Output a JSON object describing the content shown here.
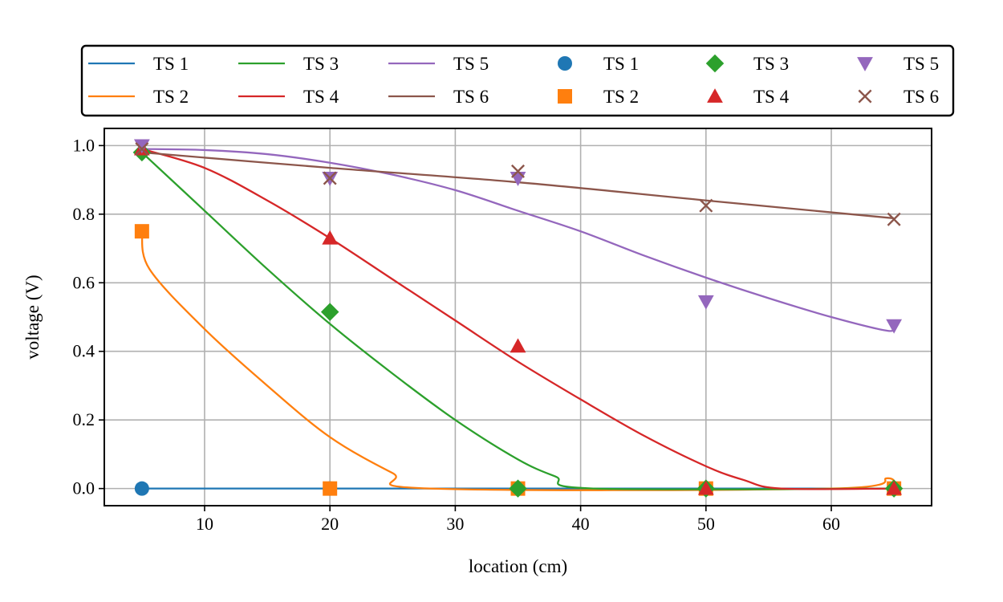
{
  "chart_data": {
    "type": "line",
    "xlabel": "location (cm)",
    "ylabel": "voltage (V)",
    "xlim": [
      2,
      68
    ],
    "ylim": [
      -0.05,
      1.05
    ],
    "xticks": [
      10,
      20,
      30,
      40,
      50,
      60
    ],
    "yticks": [
      0.0,
      0.2,
      0.4,
      0.6,
      0.8,
      1.0
    ],
    "grid": true,
    "legend_placement": "top, above plot, 6 columns",
    "series": [
      {
        "name": "TS 1",
        "color": "#1f77b4",
        "marker": "circle",
        "line": [
          [
            5,
            0.0
          ],
          [
            65,
            0.0
          ]
        ],
        "points": [
          [
            5,
            0.0
          ],
          [
            20,
            0.0
          ],
          [
            35,
            0.0
          ],
          [
            50,
            0.0
          ],
          [
            65,
            0.0
          ]
        ]
      },
      {
        "name": "TS 2",
        "color": "#ff7f0e",
        "marker": "square",
        "line": [
          [
            5,
            0.75
          ],
          [
            5.6,
            0.64
          ],
          [
            10,
            0.465
          ],
          [
            15,
            0.3
          ],
          [
            20,
            0.15
          ],
          [
            25,
            0.045
          ],
          [
            28,
            0.0
          ],
          [
            60,
            0.0
          ],
          [
            64.5,
            0.03
          ],
          [
            65,
            0.0
          ]
        ],
        "points": [
          [
            5,
            0.75
          ],
          [
            20,
            0.0
          ],
          [
            35,
            0.0
          ],
          [
            50,
            0.0
          ],
          [
            65,
            0.0
          ]
        ]
      },
      {
        "name": "TS 3",
        "color": "#2ca02c",
        "marker": "diamond",
        "line": [
          [
            5,
            0.98
          ],
          [
            10,
            0.81
          ],
          [
            15,
            0.64
          ],
          [
            20,
            0.48
          ],
          [
            25,
            0.335
          ],
          [
            30,
            0.2
          ],
          [
            35,
            0.085
          ],
          [
            38,
            0.035
          ],
          [
            41,
            0.0
          ],
          [
            65,
            0.0
          ]
        ],
        "points": [
          [
            5,
            0.98
          ],
          [
            20,
            0.515
          ],
          [
            35,
            0.0
          ],
          [
            50,
            0.0
          ],
          [
            65,
            0.0
          ]
        ]
      },
      {
        "name": "TS 4",
        "color": "#d62728",
        "marker": "triangle-up",
        "line": [
          [
            5,
            0.99
          ],
          [
            10,
            0.935
          ],
          [
            15,
            0.84
          ],
          [
            20,
            0.73
          ],
          [
            25,
            0.61
          ],
          [
            30,
            0.49
          ],
          [
            35,
            0.37
          ],
          [
            40,
            0.26
          ],
          [
            45,
            0.155
          ],
          [
            50,
            0.065
          ],
          [
            53,
            0.025
          ],
          [
            56,
            0.0
          ],
          [
            65,
            0.0
          ]
        ],
        "points": [
          [
            5,
            0.99
          ],
          [
            20,
            0.73
          ],
          [
            35,
            0.415
          ],
          [
            50,
            0.0
          ],
          [
            65,
            0.0
          ]
        ]
      },
      {
        "name": "TS 5",
        "color": "#9467bd",
        "marker": "triangle-down",
        "line": [
          [
            5,
            0.99
          ],
          [
            10,
            0.987
          ],
          [
            15,
            0.975
          ],
          [
            20,
            0.95
          ],
          [
            25,
            0.915
          ],
          [
            30,
            0.87
          ],
          [
            35,
            0.81
          ],
          [
            40,
            0.75
          ],
          [
            45,
            0.68
          ],
          [
            50,
            0.615
          ],
          [
            55,
            0.555
          ],
          [
            60,
            0.5
          ],
          [
            64.5,
            0.46
          ],
          [
            65,
            0.475
          ]
        ],
        "points": [
          [
            5,
            1.0
          ],
          [
            20,
            0.905
          ],
          [
            35,
            0.905
          ],
          [
            50,
            0.545
          ],
          [
            65,
            0.475
          ]
        ]
      },
      {
        "name": "TS 6",
        "color": "#8c564b",
        "marker": "x",
        "line": [
          [
            5,
            0.98
          ],
          [
            20,
            0.935
          ],
          [
            35,
            0.893
          ],
          [
            50,
            0.84
          ],
          [
            65,
            0.788
          ]
        ],
        "points": [
          [
            5,
            0.99
          ],
          [
            20,
            0.905
          ],
          [
            35,
            0.925
          ],
          [
            50,
            0.825
          ],
          [
            65,
            0.785
          ]
        ]
      }
    ]
  }
}
